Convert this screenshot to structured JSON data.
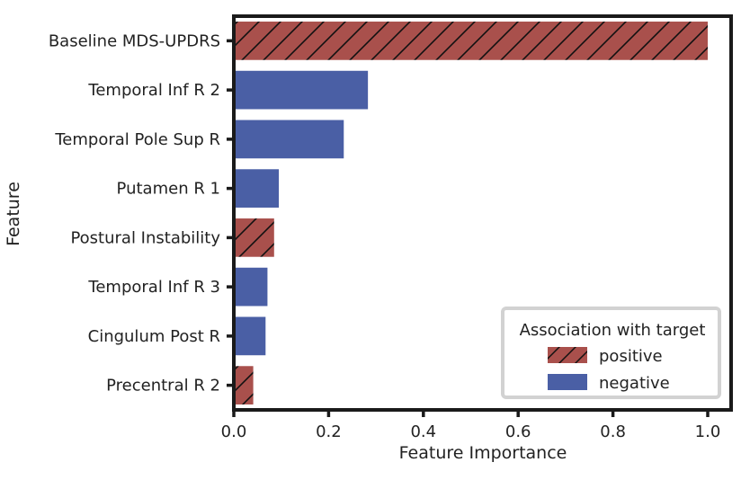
{
  "chart_data": {
    "type": "bar",
    "orientation": "horizontal",
    "title": "",
    "xlabel": "Feature Importance",
    "ylabel": "Feature",
    "xlim": [
      0,
      1.05
    ],
    "xticks": [
      "0.0",
      "0.2",
      "0.4",
      "0.6",
      "0.8",
      "1.0"
    ],
    "grid": false,
    "categories": [
      "Baseline MDS-UPDRS",
      "Temporal Inf R 2",
      "Temporal Pole Sup R",
      "Putamen R 1",
      "Postural Instability",
      "Temporal Inf R 3",
      "Cingulum Post R",
      "Precentral R 2"
    ],
    "values": [
      1.0,
      0.283,
      0.232,
      0.095,
      0.085,
      0.071,
      0.067,
      0.041
    ],
    "association": [
      "positive",
      "negative",
      "negative",
      "negative",
      "positive",
      "negative",
      "negative",
      "positive"
    ],
    "legend": {
      "title": "Association with target",
      "placement": "lower-right",
      "entries": [
        {
          "key": "positive",
          "label": "positive",
          "color": "#a9504c",
          "hatch": "diagonal"
        },
        {
          "key": "negative",
          "label": "negative",
          "color": "#4a5fa5",
          "hatch": "none"
        }
      ]
    }
  }
}
